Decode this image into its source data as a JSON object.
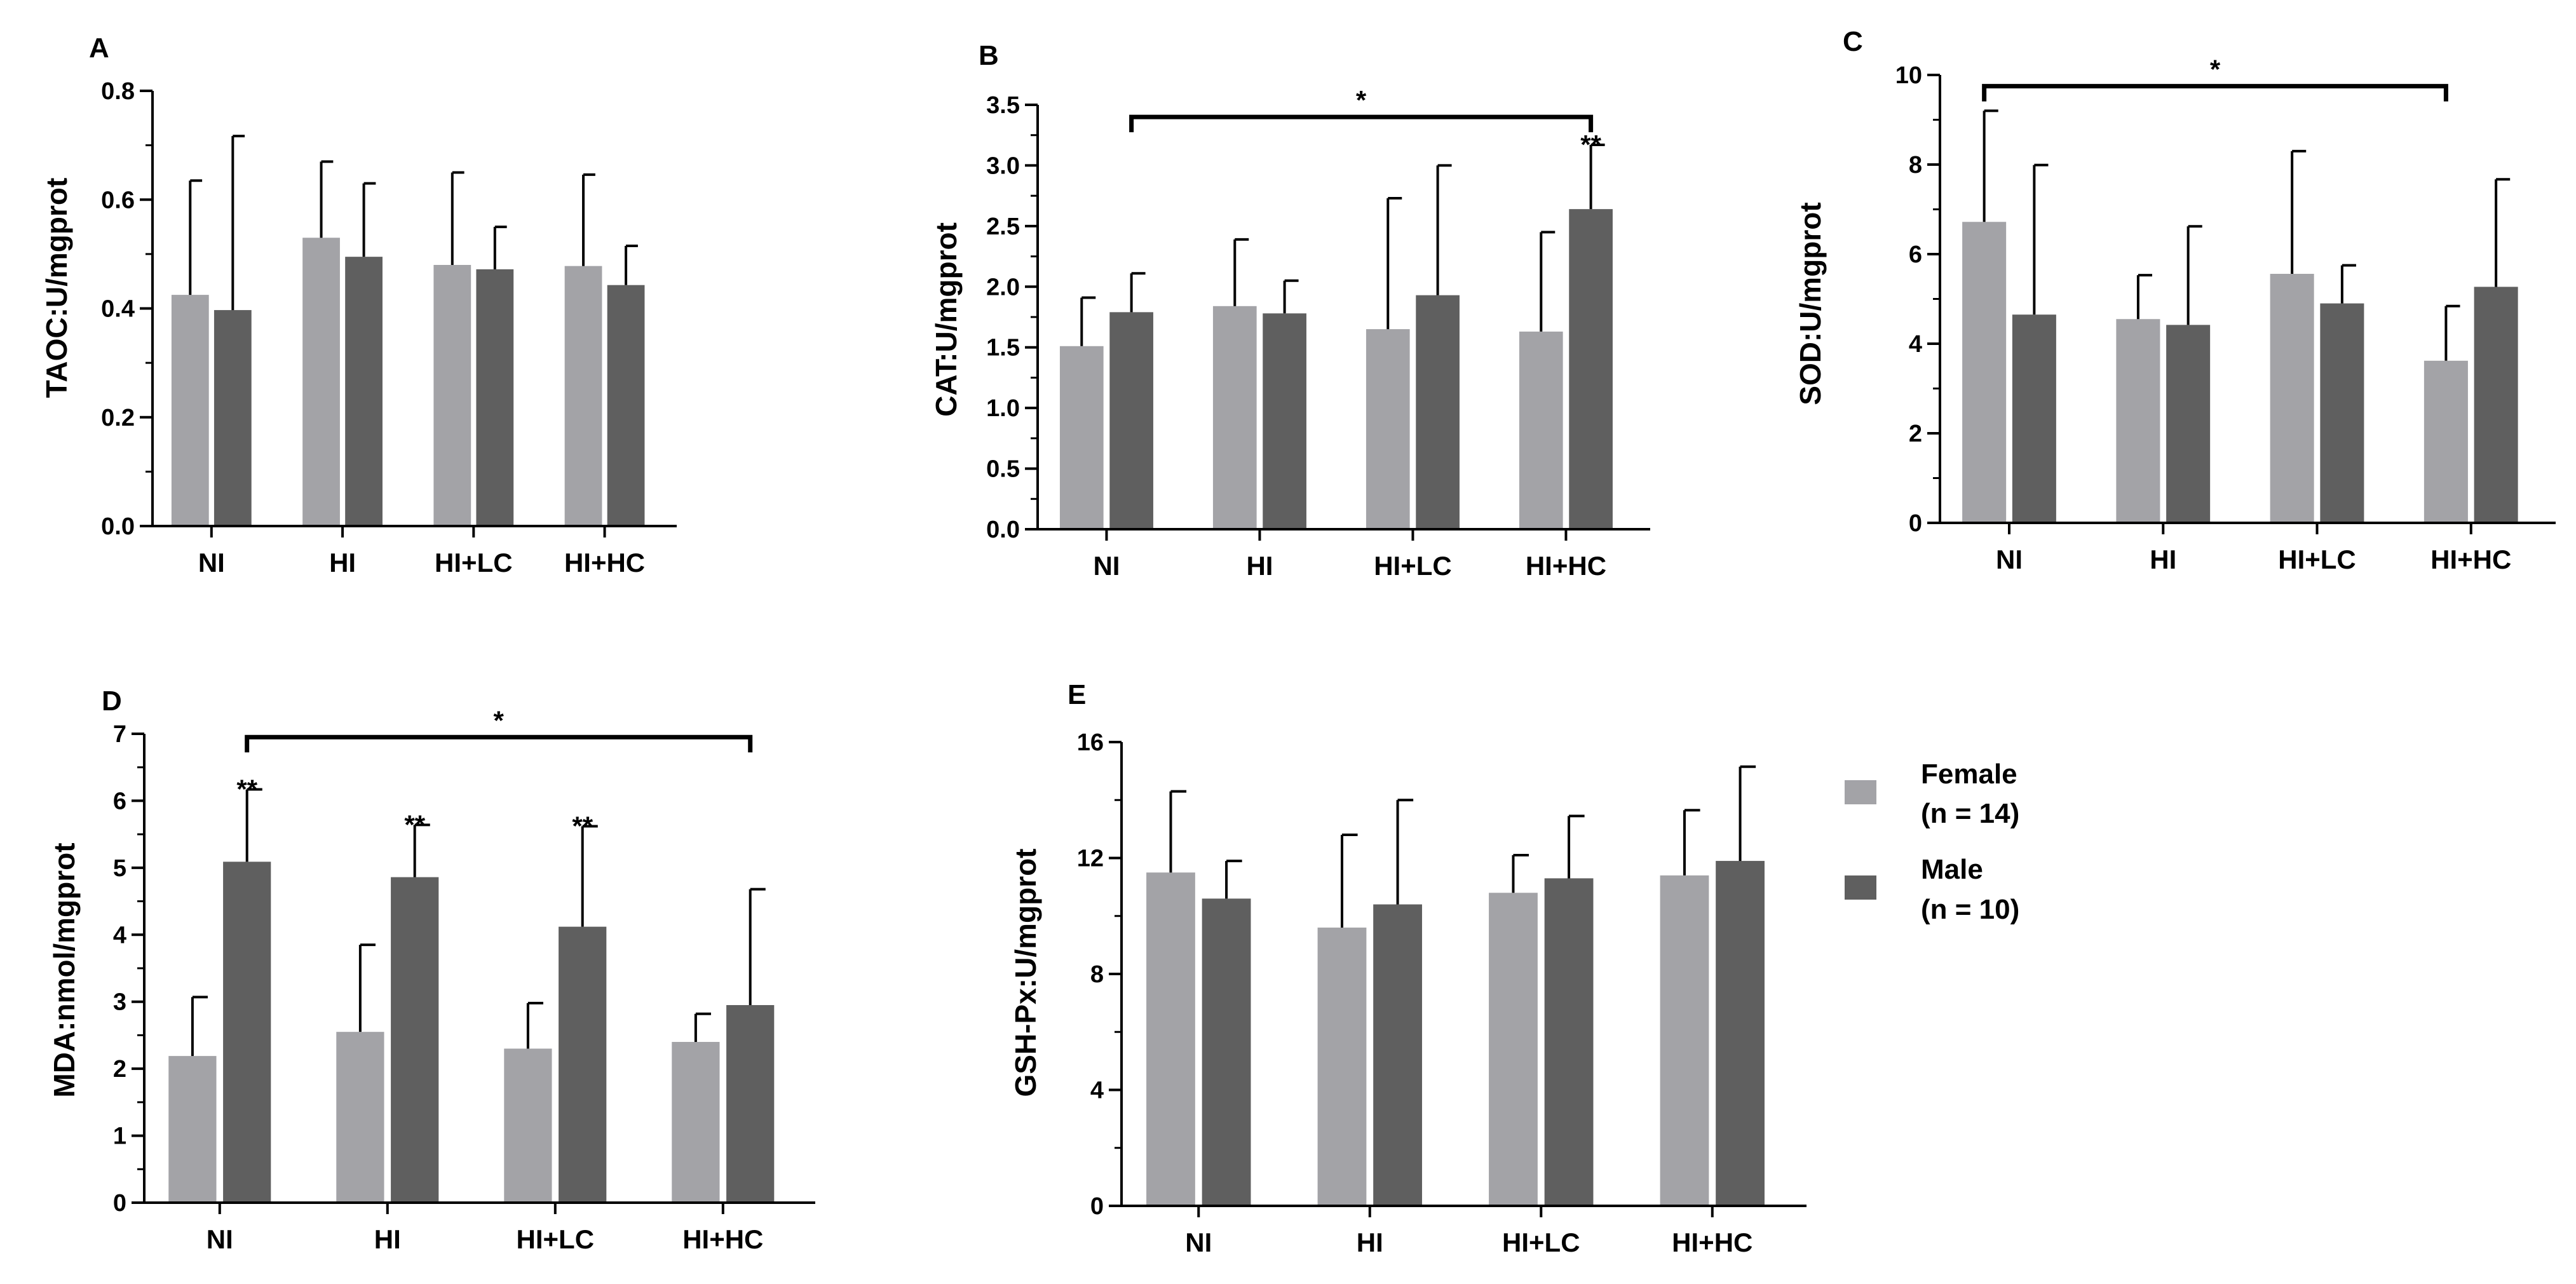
{
  "colors": {
    "female": "#a3a3a7",
    "male": "#5f5f5f",
    "axis": "#000000"
  },
  "legend": {
    "items": [
      {
        "key": "female",
        "line1": "Female",
        "line2": "(n = 14)"
      },
      {
        "key": "male",
        "line1": "Male",
        "line2": "(n = 10)"
      }
    ]
  },
  "chart_data": [
    {
      "panel": "A",
      "type": "bar",
      "ylabel": "TAOC:U/mgprot",
      "categories": [
        "NI",
        "HI",
        "HI+LC",
        "HI+HC"
      ],
      "ylim": [
        0,
        0.8
      ],
      "yticks": [
        0.0,
        0.2,
        0.4,
        0.6,
        0.8
      ],
      "yticklabels": [
        "0.0",
        "0.2",
        "0.4",
        "0.6",
        "0.8"
      ],
      "series": [
        {
          "name": "Female (n = 14)",
          "key": "female",
          "values": [
            0.425,
            0.53,
            0.48,
            0.478
          ],
          "errors": [
            0.21,
            0.14,
            0.17,
            0.168
          ],
          "marks": [
            "",
            "",
            "",
            ""
          ]
        },
        {
          "name": "Male (n = 10)",
          "key": "male",
          "values": [
            0.397,
            0.495,
            0.472,
            0.443
          ],
          "errors": [
            0.32,
            0.135,
            0.078,
            0.072
          ],
          "marks": [
            "",
            "",
            "",
            ""
          ]
        }
      ],
      "brackets": []
    },
    {
      "panel": "B",
      "type": "bar",
      "ylabel": "CAT:U/mgprot",
      "categories": [
        "NI",
        "HI",
        "HI+LC",
        "HI+HC"
      ],
      "ylim": [
        0,
        3.5
      ],
      "yticks": [
        0.0,
        0.5,
        1.0,
        1.5,
        2.0,
        2.5,
        3.0,
        3.5
      ],
      "yticklabels": [
        "0.0",
        "0.5",
        "1.0",
        "1.5",
        "2.0",
        "2.5",
        "3.0",
        "3.5"
      ],
      "series": [
        {
          "name": "Female (n = 14)",
          "key": "female",
          "values": [
            1.51,
            1.84,
            1.65,
            1.63
          ],
          "errors": [
            0.4,
            0.55,
            1.08,
            0.82
          ],
          "marks": [
            "",
            "",
            "",
            ""
          ]
        },
        {
          "name": "Male (n = 10)",
          "key": "male",
          "values": [
            1.79,
            1.78,
            1.93,
            2.64
          ],
          "errors": [
            0.32,
            0.27,
            1.07,
            0.53
          ],
          "marks": [
            "",
            "",
            "",
            "**"
          ]
        }
      ],
      "brackets": [
        {
          "from": 0,
          "to": 3,
          "series": "male",
          "y": 3.4,
          "label": "*"
        }
      ]
    },
    {
      "panel": "C",
      "type": "bar",
      "ylabel": "SOD:U/mgprot",
      "categories": [
        "NI",
        "HI",
        "HI+LC",
        "HI+HC"
      ],
      "ylim": [
        0,
        10
      ],
      "yticks": [
        0,
        2,
        4,
        6,
        8,
        10
      ],
      "yticklabels": [
        "0",
        "2",
        "4",
        "6",
        "8",
        "10"
      ],
      "series": [
        {
          "name": "Female (n = 14)",
          "key": "female",
          "values": [
            6.72,
            4.55,
            5.56,
            3.62
          ],
          "errors": [
            2.48,
            0.98,
            2.74,
            1.22
          ],
          "marks": [
            "",
            "",
            "",
            ""
          ]
        },
        {
          "name": "Male (n = 10)",
          "key": "male",
          "values": [
            4.65,
            4.42,
            4.9,
            5.27
          ],
          "errors": [
            3.34,
            2.2,
            0.85,
            2.4
          ],
          "marks": [
            "",
            "",
            "",
            ""
          ]
        }
      ],
      "brackets": [
        {
          "from": 0,
          "to": 3,
          "series": "female",
          "y": 9.75,
          "label": "*"
        }
      ]
    },
    {
      "panel": "D",
      "type": "bar",
      "ylabel": "MDA:nmol/mgprot",
      "categories": [
        "NI",
        "HI",
        "HI+LC",
        "HI+HC"
      ],
      "ylim": [
        0,
        7
      ],
      "yticks": [
        0,
        1,
        2,
        3,
        4,
        5,
        6,
        7
      ],
      "yticklabels": [
        "0",
        "1",
        "2",
        "3",
        "4",
        "5",
        "6",
        "7"
      ],
      "series": [
        {
          "name": "Female (n = 14)",
          "key": "female",
          "values": [
            2.19,
            2.55,
            2.3,
            2.4
          ],
          "errors": [
            0.88,
            1.3,
            0.68,
            0.42
          ],
          "marks": [
            "",
            "",
            "",
            ""
          ]
        },
        {
          "name": "Male (n = 10)",
          "key": "male",
          "values": [
            5.09,
            4.86,
            4.12,
            2.95
          ],
          "errors": [
            1.08,
            0.78,
            1.5,
            1.73
          ],
          "marks": [
            "**",
            "**",
            "**",
            ""
          ]
        }
      ],
      "brackets": [
        {
          "from": 0,
          "to": 3,
          "series": "male",
          "y": 6.95,
          "label": "*"
        }
      ]
    },
    {
      "panel": "E",
      "type": "bar",
      "ylabel": "GSH-Px:U/mgprot",
      "categories": [
        "NI",
        "HI",
        "HI+LC",
        "HI+HC"
      ],
      "ylim": [
        0,
        16
      ],
      "yticks": [
        0,
        4,
        8,
        12,
        16
      ],
      "yticklabels": [
        "0",
        "4",
        "8",
        "12",
        "16"
      ],
      "series": [
        {
          "name": "Female (n = 14)",
          "key": "female",
          "values": [
            11.5,
            9.6,
            10.8,
            11.4
          ],
          "errors": [
            2.8,
            3.2,
            1.3,
            2.25
          ],
          "marks": [
            "",
            "",
            "",
            ""
          ]
        },
        {
          "name": "Male (n = 10)",
          "key": "male",
          "values": [
            10.6,
            10.4,
            11.3,
            11.9
          ],
          "errors": [
            1.3,
            3.6,
            2.15,
            3.25
          ],
          "marks": [
            "",
            "",
            "",
            ""
          ]
        }
      ],
      "brackets": []
    }
  ]
}
